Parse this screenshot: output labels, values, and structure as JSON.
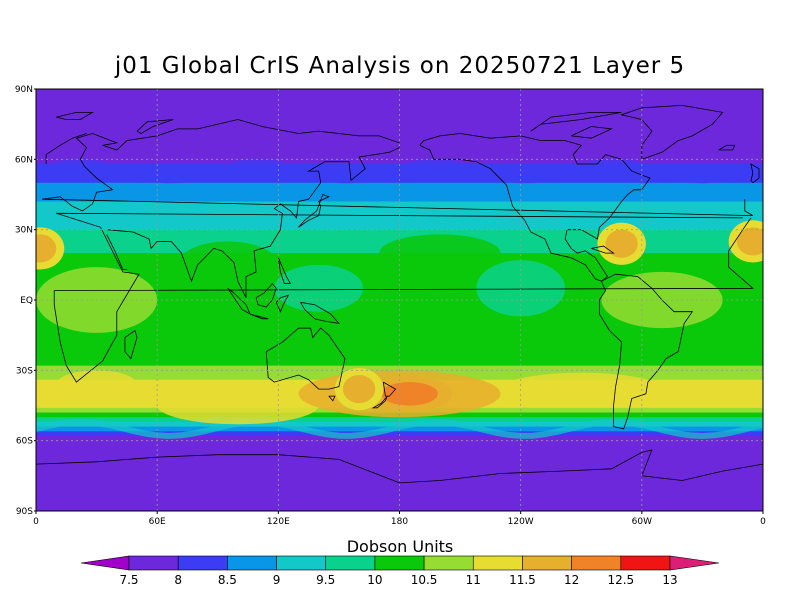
{
  "title": "j01 Global CrIS Analysis on 20250721 Layer 5",
  "colorbar": {
    "title": "Dobson Units",
    "levels": [
      "7.5",
      "8",
      "8.5",
      "9",
      "9.5",
      "10",
      "10.5",
      "11",
      "11.5",
      "12",
      "12.5",
      "13"
    ],
    "colors": [
      "#a000c8",
      "#6e28dc",
      "#3c3cf5",
      "#0a96e6",
      "#12c8c8",
      "#0ad28c",
      "#0ac80a",
      "#96dc32",
      "#e6dc32",
      "#e6af2d",
      "#f08228",
      "#f01414",
      "#dc1e78"
    ]
  },
  "axes": {
    "lat_labels": [
      "90N",
      "60N",
      "30N",
      "EQ",
      "30S",
      "60S",
      "90S"
    ],
    "lon_labels": [
      "0",
      "60E",
      "120E",
      "180",
      "120W",
      "60W",
      "0"
    ]
  },
  "chart_data": {
    "type": "heatmap",
    "title": "j01 Global CrIS Analysis on 20250721 Layer 5",
    "units": "Dobson Units",
    "lon_range": [
      0,
      360
    ],
    "lat_range": [
      -90,
      90
    ],
    "zonal_profile": [
      {
        "lat": 90,
        "value": 7.5
      },
      {
        "lat": 65,
        "value": 7.5
      },
      {
        "lat": 58,
        "value": 8
      },
      {
        "lat": 50,
        "value": 8.5
      },
      {
        "lat": 42,
        "value": 9
      },
      {
        "lat": 30,
        "value": 9.5
      },
      {
        "lat": 20,
        "value": 10
      },
      {
        "lat": 10,
        "value": 10
      },
      {
        "lat": 0,
        "value": 10.5
      },
      {
        "lat": -10,
        "value": 10
      },
      {
        "lat": -20,
        "value": 10
      },
      {
        "lat": -28,
        "value": 10.5
      },
      {
        "lat": -35,
        "value": 11
      },
      {
        "lat": -42,
        "value": 11.5
      },
      {
        "lat": -48,
        "value": 10.5
      },
      {
        "lat": -54,
        "value": 9
      },
      {
        "lat": -58,
        "value": 8
      },
      {
        "lat": -62,
        "value": 7.5
      },
      {
        "lat": -90,
        "value": 7.5
      }
    ],
    "hotspots": [
      {
        "lon": 185,
        "lat": -40,
        "value": 12
      },
      {
        "lon": 160,
        "lat": -38,
        "value": 11.5
      },
      {
        "lon": 2,
        "lat": 22,
        "value": 11.5
      },
      {
        "lon": 290,
        "lat": 24,
        "value": 11.5
      },
      {
        "lon": 355,
        "lat": 25,
        "value": 11.5
      }
    ],
    "grid": true
  }
}
